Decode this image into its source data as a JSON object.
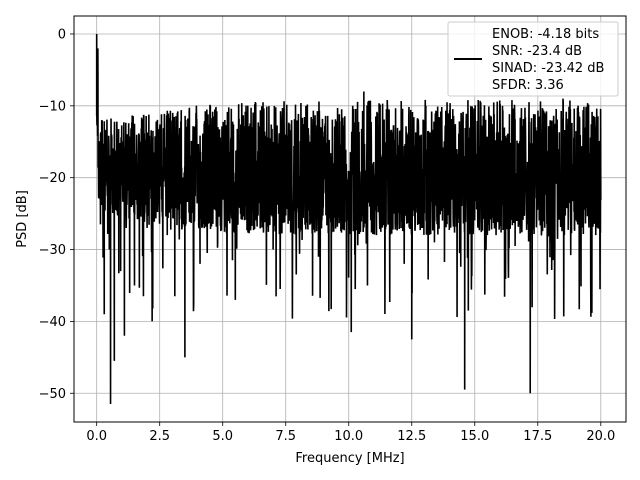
{
  "chart_data": {
    "type": "line",
    "title": "",
    "xlabel": "Frequency [MHz]",
    "ylabel": "PSD [dB]",
    "xlim": [
      -0.9,
      21.0
    ],
    "ylim": [
      -54.0,
      2.5
    ],
    "grid": true,
    "legend_position": "top-right",
    "xticks": [
      0.0,
      2.5,
      5.0,
      7.5,
      10.0,
      12.5,
      15.0,
      17.5,
      20.0
    ],
    "xtick_labels": [
      "0.0",
      "2.5",
      "5.0",
      "7.5",
      "10.0",
      "12.5",
      "15.0",
      "17.5",
      "20.0"
    ],
    "yticks": [
      0,
      -10,
      -20,
      -30,
      -40,
      -50
    ],
    "ytick_labels": [
      "0",
      "−10",
      "−20",
      "−30",
      "−40",
      "−50"
    ],
    "series": [
      {
        "color": "#000000",
        "x": [
          0.0,
          0.05,
          0.1,
          0.15,
          0.2,
          0.3,
          0.4,
          0.5,
          0.55,
          0.6,
          0.7,
          0.85,
          0.95,
          1.1,
          1.3,
          1.5,
          1.75,
          2.0,
          2.2,
          2.5,
          2.8,
          3.1,
          3.2,
          3.5,
          3.8,
          4.1,
          4.5,
          4.8,
          5.2,
          5.5,
          5.8,
          6.2,
          6.6,
          7.0,
          7.5,
          7.8,
          8.3,
          8.8,
          9.3,
          9.8,
          10.1,
          10.6,
          11.1,
          11.6,
          12.2,
          12.5,
          13.0,
          13.4,
          13.9,
          14.4,
          14.6,
          15.0,
          15.5,
          16.1,
          16.6,
          17.0,
          17.2,
          17.6,
          18.0,
          18.5,
          19.0,
          19.4,
          19.8,
          20.0
        ],
        "values": [
          0.0,
          -5.5,
          -17.0,
          -26.5,
          -12.0,
          -39.0,
          -15.0,
          -30.0,
          -51.5,
          -14.5,
          -45.5,
          -18.0,
          -33.0,
          -42.0,
          -19.0,
          -35.0,
          -15.0,
          -27.0,
          -40.0,
          -13.0,
          -28.0,
          -36.5,
          -11.0,
          -45.0,
          -20.0,
          -32.0,
          -10.0,
          -29.0,
          -19.0,
          -37.0,
          -12.5,
          -22.0,
          -9.5,
          -30.0,
          -14.0,
          -26.0,
          -10.0,
          -31.0,
          -17.5,
          -25.0,
          -41.5,
          -8.0,
          -28.0,
          -10.5,
          -32.0,
          -42.5,
          -12.0,
          -29.0,
          -9.5,
          -30.5,
          -49.5,
          -11.5,
          -28.0,
          -10.0,
          -29.5,
          -12.0,
          -50.0,
          -17.0,
          -29.0,
          -9.0,
          -25.0,
          -13.0,
          -28.0,
          -23.0
        ]
      }
    ],
    "legend": [
      "ENOB: -4.18 bits",
      "SNR: -23.4 dB",
      "SINAD: -23.42 dB",
      "SFDR: 3.36"
    ]
  }
}
